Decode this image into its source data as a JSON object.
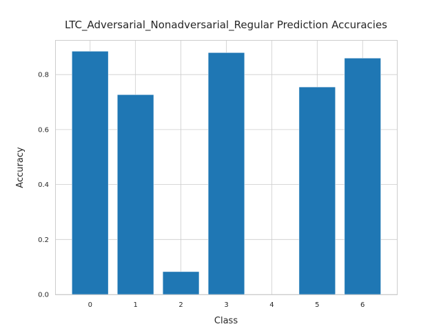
{
  "chart_data": {
    "type": "bar",
    "title": "LTC_Adversarial_Nonadversarial_Regular Prediction Accuracies",
    "xlabel": "Class",
    "ylabel": "Accuracy",
    "categories": [
      "0",
      "1",
      "2",
      "3",
      "4",
      "5",
      "6"
    ],
    "values": [
      0.885,
      0.727,
      0.083,
      0.88,
      0.0,
      0.755,
      0.86
    ],
    "ylim": [
      0,
      0.926
    ],
    "yticks": [
      "0.0",
      "0.2",
      "0.4",
      "0.6",
      "0.8"
    ],
    "grid": true,
    "colors": {
      "bar": "#1f77b4",
      "grid": "#cccccc",
      "text": "#262626"
    }
  }
}
